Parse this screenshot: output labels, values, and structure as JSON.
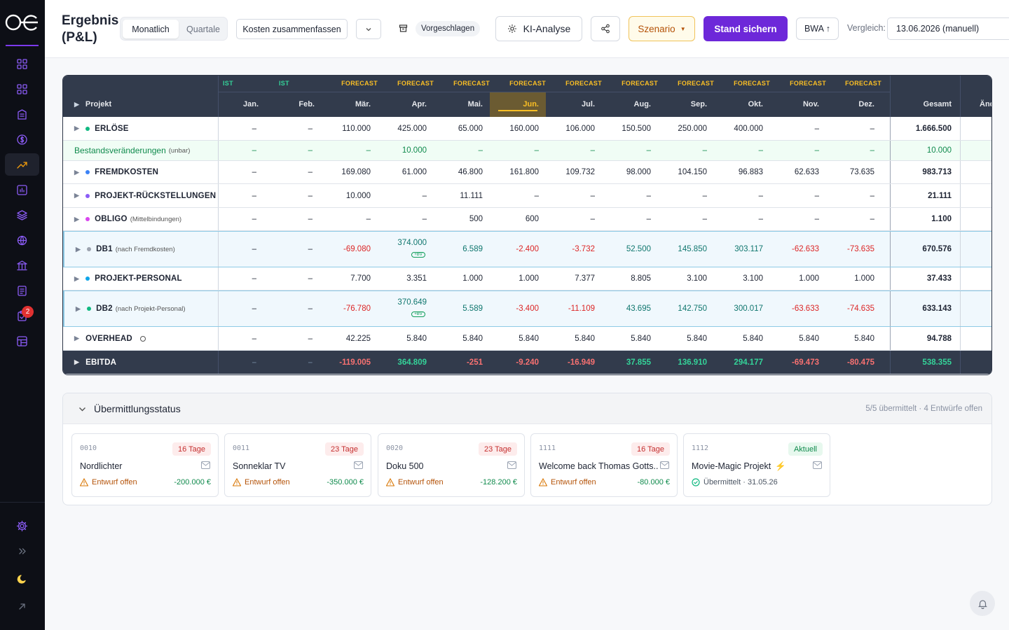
{
  "app": {
    "logo": "oe-logo",
    "title_line1": "Ergebnis",
    "title_line2": "(P&L)"
  },
  "sidebar": {
    "icons": [
      "grid-icon",
      "grid-icon",
      "building-icon",
      "currency-icon",
      "trend-up-icon",
      "bar-chart-icon",
      "layers-icon",
      "globe-icon",
      "bank-icon",
      "document-icon",
      "clipboard-icon",
      "calendar-grid-icon"
    ],
    "active_index": 4,
    "badge": "2",
    "bottom_icons": [
      "gear-icon",
      "chevrons-right-icon",
      "moon-icon",
      "arrow-up-right-icon"
    ]
  },
  "toolbar": {
    "view_monthly": "Monatlich",
    "view_quarterly": "Quartale",
    "summarize_costs": "Kosten zusammenfassen",
    "suggested": "Vorgeschlagen",
    "ai_analysis": "KI-Analyse",
    "scenario": "Szenario",
    "save_state": "Stand sichern",
    "bwa": "BWA ↑",
    "compare_label": "Vergleich:",
    "compare_value": "13.06.2026 (manuell)"
  },
  "table": {
    "project_header": "Projekt",
    "total_header": "Gesamt",
    "change_header": "Änd",
    "months": [
      {
        "type": "IST",
        "label": "Jan."
      },
      {
        "type": "IST",
        "label": "Feb."
      },
      {
        "type": "FORECAST",
        "label": "Mär."
      },
      {
        "type": "FORECAST",
        "label": "Apr."
      },
      {
        "type": "FORECAST",
        "label": "Mai."
      },
      {
        "type": "FORECAST",
        "label": "Jun."
      },
      {
        "type": "FORECAST",
        "label": "Jul."
      },
      {
        "type": "FORECAST",
        "label": "Aug."
      },
      {
        "type": "FORECAST",
        "label": "Sep."
      },
      {
        "type": "FORECAST",
        "label": "Okt."
      },
      {
        "type": "FORECAST",
        "label": "Nov."
      },
      {
        "type": "FORECAST",
        "label": "Dez."
      }
    ],
    "current_month_index": 5,
    "rows": [
      {
        "label": "ERLÖSE",
        "sub": "",
        "dot": "#10b981",
        "values": [
          "–",
          "–",
          "110.000",
          "425.000",
          "65.000",
          "160.000",
          "106.000",
          "150.500",
          "250.000",
          "400.000",
          "–",
          "–"
        ],
        "total": "1.666.500"
      },
      {
        "label": "Bestandsveränderungen",
        "sub": "(unbar)",
        "dot": "",
        "values": [
          "–",
          "–",
          "–",
          "10.000",
          "–",
          "–",
          "–",
          "–",
          "–",
          "–",
          "–",
          "–"
        ],
        "total": "10.000"
      },
      {
        "label": "FREMDKOSTEN",
        "sub": "",
        "dot": "#3b82f6",
        "values": [
          "–",
          "–",
          "169.080",
          "61.000",
          "46.800",
          "161.800",
          "109.732",
          "98.000",
          "104.150",
          "96.883",
          "62.633",
          "73.635"
        ],
        "total": "983.713"
      },
      {
        "label": "PROJEKT-RÜCKSTELLUNGEN",
        "sub": "",
        "dot": "#8b5cf6",
        "values": [
          "–",
          "–",
          "10.000",
          "–",
          "11.111",
          "–",
          "–",
          "–",
          "–",
          "–",
          "–",
          "–"
        ],
        "total": "21.111"
      },
      {
        "label": "OBLIGO",
        "sub": "(Mittelbindungen)",
        "dot": "#d946ef",
        "values": [
          "–",
          "–",
          "–",
          "–",
          "500",
          "600",
          "–",
          "–",
          "–",
          "–",
          "–",
          "–"
        ],
        "total": "1.100"
      },
      {
        "label": "DB1",
        "sub": "(nach Fremdkosten)",
        "dot": "#9ca3af",
        "values": [
          "–",
          "–",
          "-69.080",
          "374.000",
          "6.589",
          "-2.400",
          "-3.732",
          "52.500",
          "145.850",
          "303.117",
          "-62.633",
          "-73.635"
        ],
        "total": "670.576",
        "bv_badge": "+BV"
      },
      {
        "label": "PROJEKT-PERSONAL",
        "sub": "",
        "dot": "#0ea5e9",
        "values": [
          "–",
          "–",
          "7.700",
          "3.351",
          "1.000",
          "1.000",
          "7.377",
          "8.805",
          "3.100",
          "3.100",
          "1.000",
          "1.000"
        ],
        "total": "37.433"
      },
      {
        "label": "DB2",
        "sub": "(nach Projekt-Personal)",
        "dot": "#10b981",
        "values": [
          "–",
          "–",
          "-76.780",
          "370.649",
          "5.589",
          "-3.400",
          "-11.109",
          "43.695",
          "142.750",
          "300.017",
          "-63.633",
          "-74.635"
        ],
        "total": "633.143",
        "bv_badge": "+BV"
      },
      {
        "label": "OVERHEAD",
        "sub": "",
        "dot": "",
        "values": [
          "–",
          "–",
          "42.225",
          "5.840",
          "5.840",
          "5.840",
          "5.840",
          "5.840",
          "5.840",
          "5.840",
          "5.840",
          "5.840"
        ],
        "total": "94.788"
      },
      {
        "label": "EBITDA",
        "sub": "",
        "dot": "",
        "values": [
          "–",
          "–",
          "-119.005",
          "364.809",
          "-251",
          "-9.240",
          "-16.949",
          "37.855",
          "136.910",
          "294.177",
          "-69.473",
          "-80.475"
        ],
        "total": "538.355"
      }
    ]
  },
  "status": {
    "title": "Übermittlungsstatus",
    "summary": "5/5 übermittelt · 4 Entwürfe offen",
    "cards": [
      {
        "code": "0010",
        "days": "16 Tage",
        "name": "Nordlichter",
        "state": "Entwurf offen",
        "amount": "-200.000 €",
        "kind": "draft"
      },
      {
        "code": "0011",
        "days": "23 Tage",
        "name": "Sonneklar TV",
        "state": "Entwurf offen",
        "amount": "-350.000 €",
        "kind": "draft"
      },
      {
        "code": "0020",
        "days": "23 Tage",
        "name": "Doku 500",
        "state": "Entwurf offen",
        "amount": "-128.200 €",
        "kind": "draft"
      },
      {
        "code": "1111",
        "days": "16 Tage",
        "name": "Welcome back Thomas Gotts...",
        "state": "Entwurf offen",
        "amount": "-80.000 €",
        "kind": "draft"
      },
      {
        "code": "1112",
        "days": "Aktuell",
        "name": "Movie-Magic Projekt",
        "state": "Übermittelt · 31.05.26",
        "amount": "",
        "kind": "done"
      }
    ]
  },
  "colors": {
    "accent": "#6d28d9",
    "scenario": "#b45309",
    "negative": "#dc2626",
    "positive": "#0f8a4c",
    "header_bg": "#323b4c",
    "ist": "#34d399",
    "forecast": "#fbbf24"
  }
}
